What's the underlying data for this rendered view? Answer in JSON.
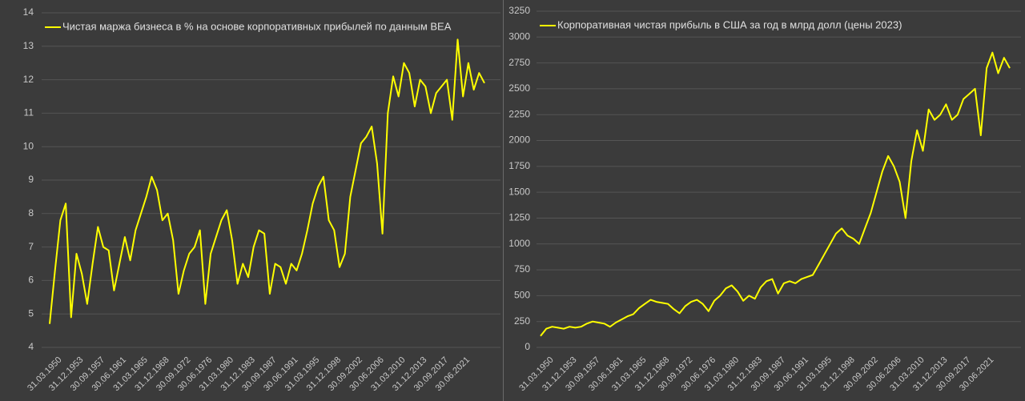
{
  "chart_data": [
    {
      "type": "line",
      "categories": [
        null,
        null,
        "31.03.1950",
        null,
        null,
        null,
        "31.12.1953",
        null,
        null,
        null,
        "30.09.1957",
        null,
        null,
        null,
        "30.06.1961",
        null,
        null,
        null,
        "31.03.1965",
        null,
        null,
        null,
        "31.12.1968",
        null,
        null,
        null,
        "30.09.1972",
        null,
        null,
        null,
        "30.06.1976",
        null,
        null,
        null,
        "31.03.1980",
        null,
        null,
        null,
        "31.12.1983",
        null,
        null,
        null,
        "30.09.1987",
        null,
        null,
        null,
        "30.06.1991",
        null,
        null,
        null,
        "31.03.1995",
        null,
        null,
        null,
        "31.12.1998",
        null,
        null,
        null,
        "30.09.2002",
        null,
        null,
        null,
        "30.06.2006",
        null,
        null,
        null,
        "31.03.2010",
        null,
        null,
        null,
        "31.12.2013",
        null,
        null,
        null,
        "30.09.2017",
        null,
        null,
        null,
        "30.06.2021",
        null,
        null,
        null
      ],
      "series": [
        {
          "name": "Чистая маржа бизнеса в % на основе корпоративных прибылей по данным BEA",
          "color": "#ffff00",
          "values": [
            4.7,
            6.3,
            7.8,
            8.3,
            4.9,
            6.8,
            6.2,
            5.3,
            6.5,
            7.6,
            7.0,
            6.9,
            5.7,
            6.5,
            7.3,
            6.6,
            7.5,
            8.0,
            8.5,
            9.1,
            8.7,
            7.8,
            8.0,
            7.2,
            5.6,
            6.3,
            6.8,
            7.0,
            7.5,
            5.3,
            6.8,
            7.3,
            7.8,
            8.1,
            7.2,
            5.9,
            6.5,
            6.1,
            7.0,
            7.5,
            7.4,
            5.6,
            6.5,
            6.4,
            5.9,
            6.5,
            6.3,
            6.8,
            7.5,
            8.3,
            8.8,
            9.1,
            7.8,
            7.5,
            6.4,
            6.8,
            8.5,
            9.3,
            10.1,
            10.3,
            10.6,
            9.5,
            7.4,
            11.0,
            12.1,
            11.5,
            12.5,
            12.2,
            11.2,
            12.0,
            11.8,
            11.0,
            11.6,
            11.8,
            12.0,
            10.8,
            13.2,
            11.5,
            12.5,
            11.7,
            12.2,
            11.9
          ]
        }
      ],
      "ylim": [
        4,
        14
      ],
      "yticks": [
        4,
        5,
        6,
        7,
        8,
        9,
        10,
        11,
        12,
        13,
        14
      ],
      "grid": true,
      "legend": "top-left"
    },
    {
      "type": "line",
      "categories": [
        null,
        null,
        "31.03.1950",
        null,
        null,
        null,
        "31.12.1953",
        null,
        null,
        null,
        "30.09.1957",
        null,
        null,
        null,
        "30.06.1961",
        null,
        null,
        null,
        "31.03.1965",
        null,
        null,
        null,
        "31.12.1968",
        null,
        null,
        null,
        "30.09.1972",
        null,
        null,
        null,
        "30.06.1976",
        null,
        null,
        null,
        "31.03.1980",
        null,
        null,
        null,
        "31.12.1983",
        null,
        null,
        null,
        "30.09.1987",
        null,
        null,
        null,
        "30.06.1991",
        null,
        null,
        null,
        "31.03.1995",
        null,
        null,
        null,
        "31.12.1998",
        null,
        null,
        null,
        "30.09.2002",
        null,
        null,
        null,
        "30.06.2006",
        null,
        null,
        null,
        "31.03.2010",
        null,
        null,
        null,
        "31.12.2013",
        null,
        null,
        null,
        "30.09.2017",
        null,
        null,
        null,
        "30.06.2021",
        null,
        null,
        null
      ],
      "series": [
        {
          "name": "Корпоративная чистая прибыль в США за год в млрд долл (цены 2023)",
          "color": "#ffff00",
          "values": [
            110,
            180,
            200,
            190,
            180,
            200,
            190,
            200,
            230,
            250,
            240,
            230,
            200,
            240,
            270,
            300,
            320,
            380,
            420,
            460,
            440,
            430,
            420,
            370,
            330,
            400,
            440,
            460,
            420,
            350,
            450,
            500,
            570,
            600,
            540,
            450,
            500,
            470,
            580,
            640,
            660,
            520,
            620,
            640,
            620,
            660,
            680,
            700,
            800,
            900,
            1000,
            1100,
            1150,
            1080,
            1050,
            1000,
            1150,
            1300,
            1500,
            1700,
            1850,
            1750,
            1600,
            1250,
            1800,
            2100,
            1900,
            2300,
            2200,
            2250,
            2350,
            2200,
            2250,
            2400,
            2450,
            2500,
            2050,
            2700,
            2850,
            2650,
            2800,
            2700
          ]
        }
      ],
      "ylim": [
        0,
        3250
      ],
      "yticks": [
        0,
        250,
        500,
        750,
        1000,
        1250,
        1500,
        1750,
        2000,
        2250,
        2500,
        2750,
        3000,
        3250
      ],
      "grid": true,
      "legend": "top-left"
    }
  ]
}
